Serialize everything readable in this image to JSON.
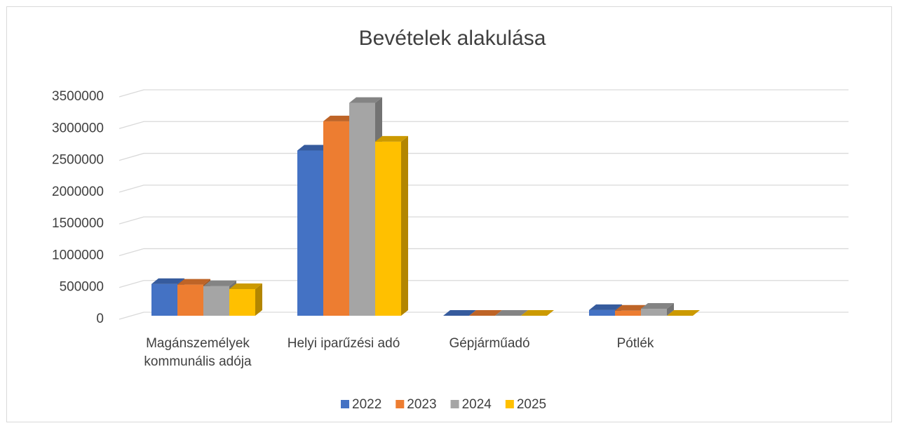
{
  "chart_data": {
    "type": "bar3d",
    "title": "Bevételek alakulása",
    "categories": [
      "Magánszemélyek kommunális adója",
      "Helyi iparűzési adó",
      "Gépjárműadó",
      "Pótlék",
      null
    ],
    "series": [
      {
        "name": "2022",
        "color": "#4472c4",
        "values": [
          500000,
          2600000,
          0,
          90000,
          null
        ]
      },
      {
        "name": "2023",
        "color": "#ed7d31",
        "values": [
          490000,
          3060000,
          0,
          80000,
          null
        ]
      },
      {
        "name": "2024",
        "color": "#a5a5a5",
        "values": [
          465000,
          3350000,
          0,
          110000,
          null
        ]
      },
      {
        "name": "2025",
        "color": "#ffc000",
        "values": [
          420000,
          2740000,
          0,
          0,
          null
        ]
      }
    ],
    "ylim": [
      0,
      3500000
    ],
    "yticks": [
      0,
      500000,
      1000000,
      1500000,
      2000000,
      2500000,
      3000000,
      3500000
    ],
    "grid": true,
    "legend": "bottom"
  }
}
